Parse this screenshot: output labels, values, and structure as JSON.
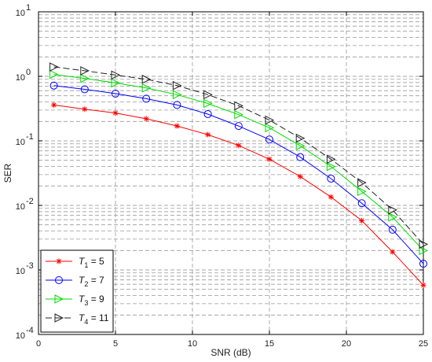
{
  "chart_data": {
    "type": "line",
    "xlabel": "SNR (dB)",
    "ylabel": "SER",
    "xlim": [
      0,
      25
    ],
    "ylim": [
      0.0001,
      10
    ],
    "yscale": "log",
    "grid": true,
    "legend_placement": "bottom-left",
    "x_ticks": [
      "0",
      "5",
      "10",
      "15",
      "20",
      "25"
    ],
    "y_ticks": [
      {
        "base": "10",
        "exp": "1"
      },
      {
        "base": "10",
        "exp": "0"
      },
      {
        "base": "10",
        "exp": "-1"
      },
      {
        "base": "10",
        "exp": "-2"
      },
      {
        "base": "10",
        "exp": "-3"
      },
      {
        "base": "10",
        "exp": "-4"
      }
    ],
    "x": [
      1,
      3,
      5,
      7,
      9,
      11,
      13,
      15,
      17,
      19,
      21,
      23,
      25
    ],
    "series": [
      {
        "sub": "1",
        "value": "5",
        "color": "#ff0000",
        "marker": "star",
        "values": [
          0.36,
          0.31,
          0.27,
          0.22,
          0.17,
          0.125,
          0.085,
          0.052,
          0.028,
          0.0135,
          0.0058,
          0.0019,
          0.00058
        ]
      },
      {
        "sub": "2",
        "value": "7",
        "color": "#0000ff",
        "marker": "circle",
        "values": [
          0.72,
          0.63,
          0.54,
          0.45,
          0.36,
          0.26,
          0.17,
          0.105,
          0.056,
          0.026,
          0.0108,
          0.0042,
          0.00125
        ]
      },
      {
        "sub": "3",
        "value": "9",
        "color": "#00dd00",
        "marker": "triangle-right",
        "values": [
          1.07,
          0.93,
          0.79,
          0.66,
          0.52,
          0.38,
          0.255,
          0.16,
          0.084,
          0.04,
          0.0165,
          0.0066,
          0.002
        ]
      },
      {
        "sub": "4",
        "value": "11",
        "color": "#222222",
        "marker": "triangle-right",
        "values": [
          1.4,
          1.22,
          1.05,
          0.9,
          0.72,
          0.52,
          0.35,
          0.21,
          0.11,
          0.052,
          0.0225,
          0.0085,
          0.0025
        ]
      }
    ],
    "legend_prefix": "T"
  }
}
